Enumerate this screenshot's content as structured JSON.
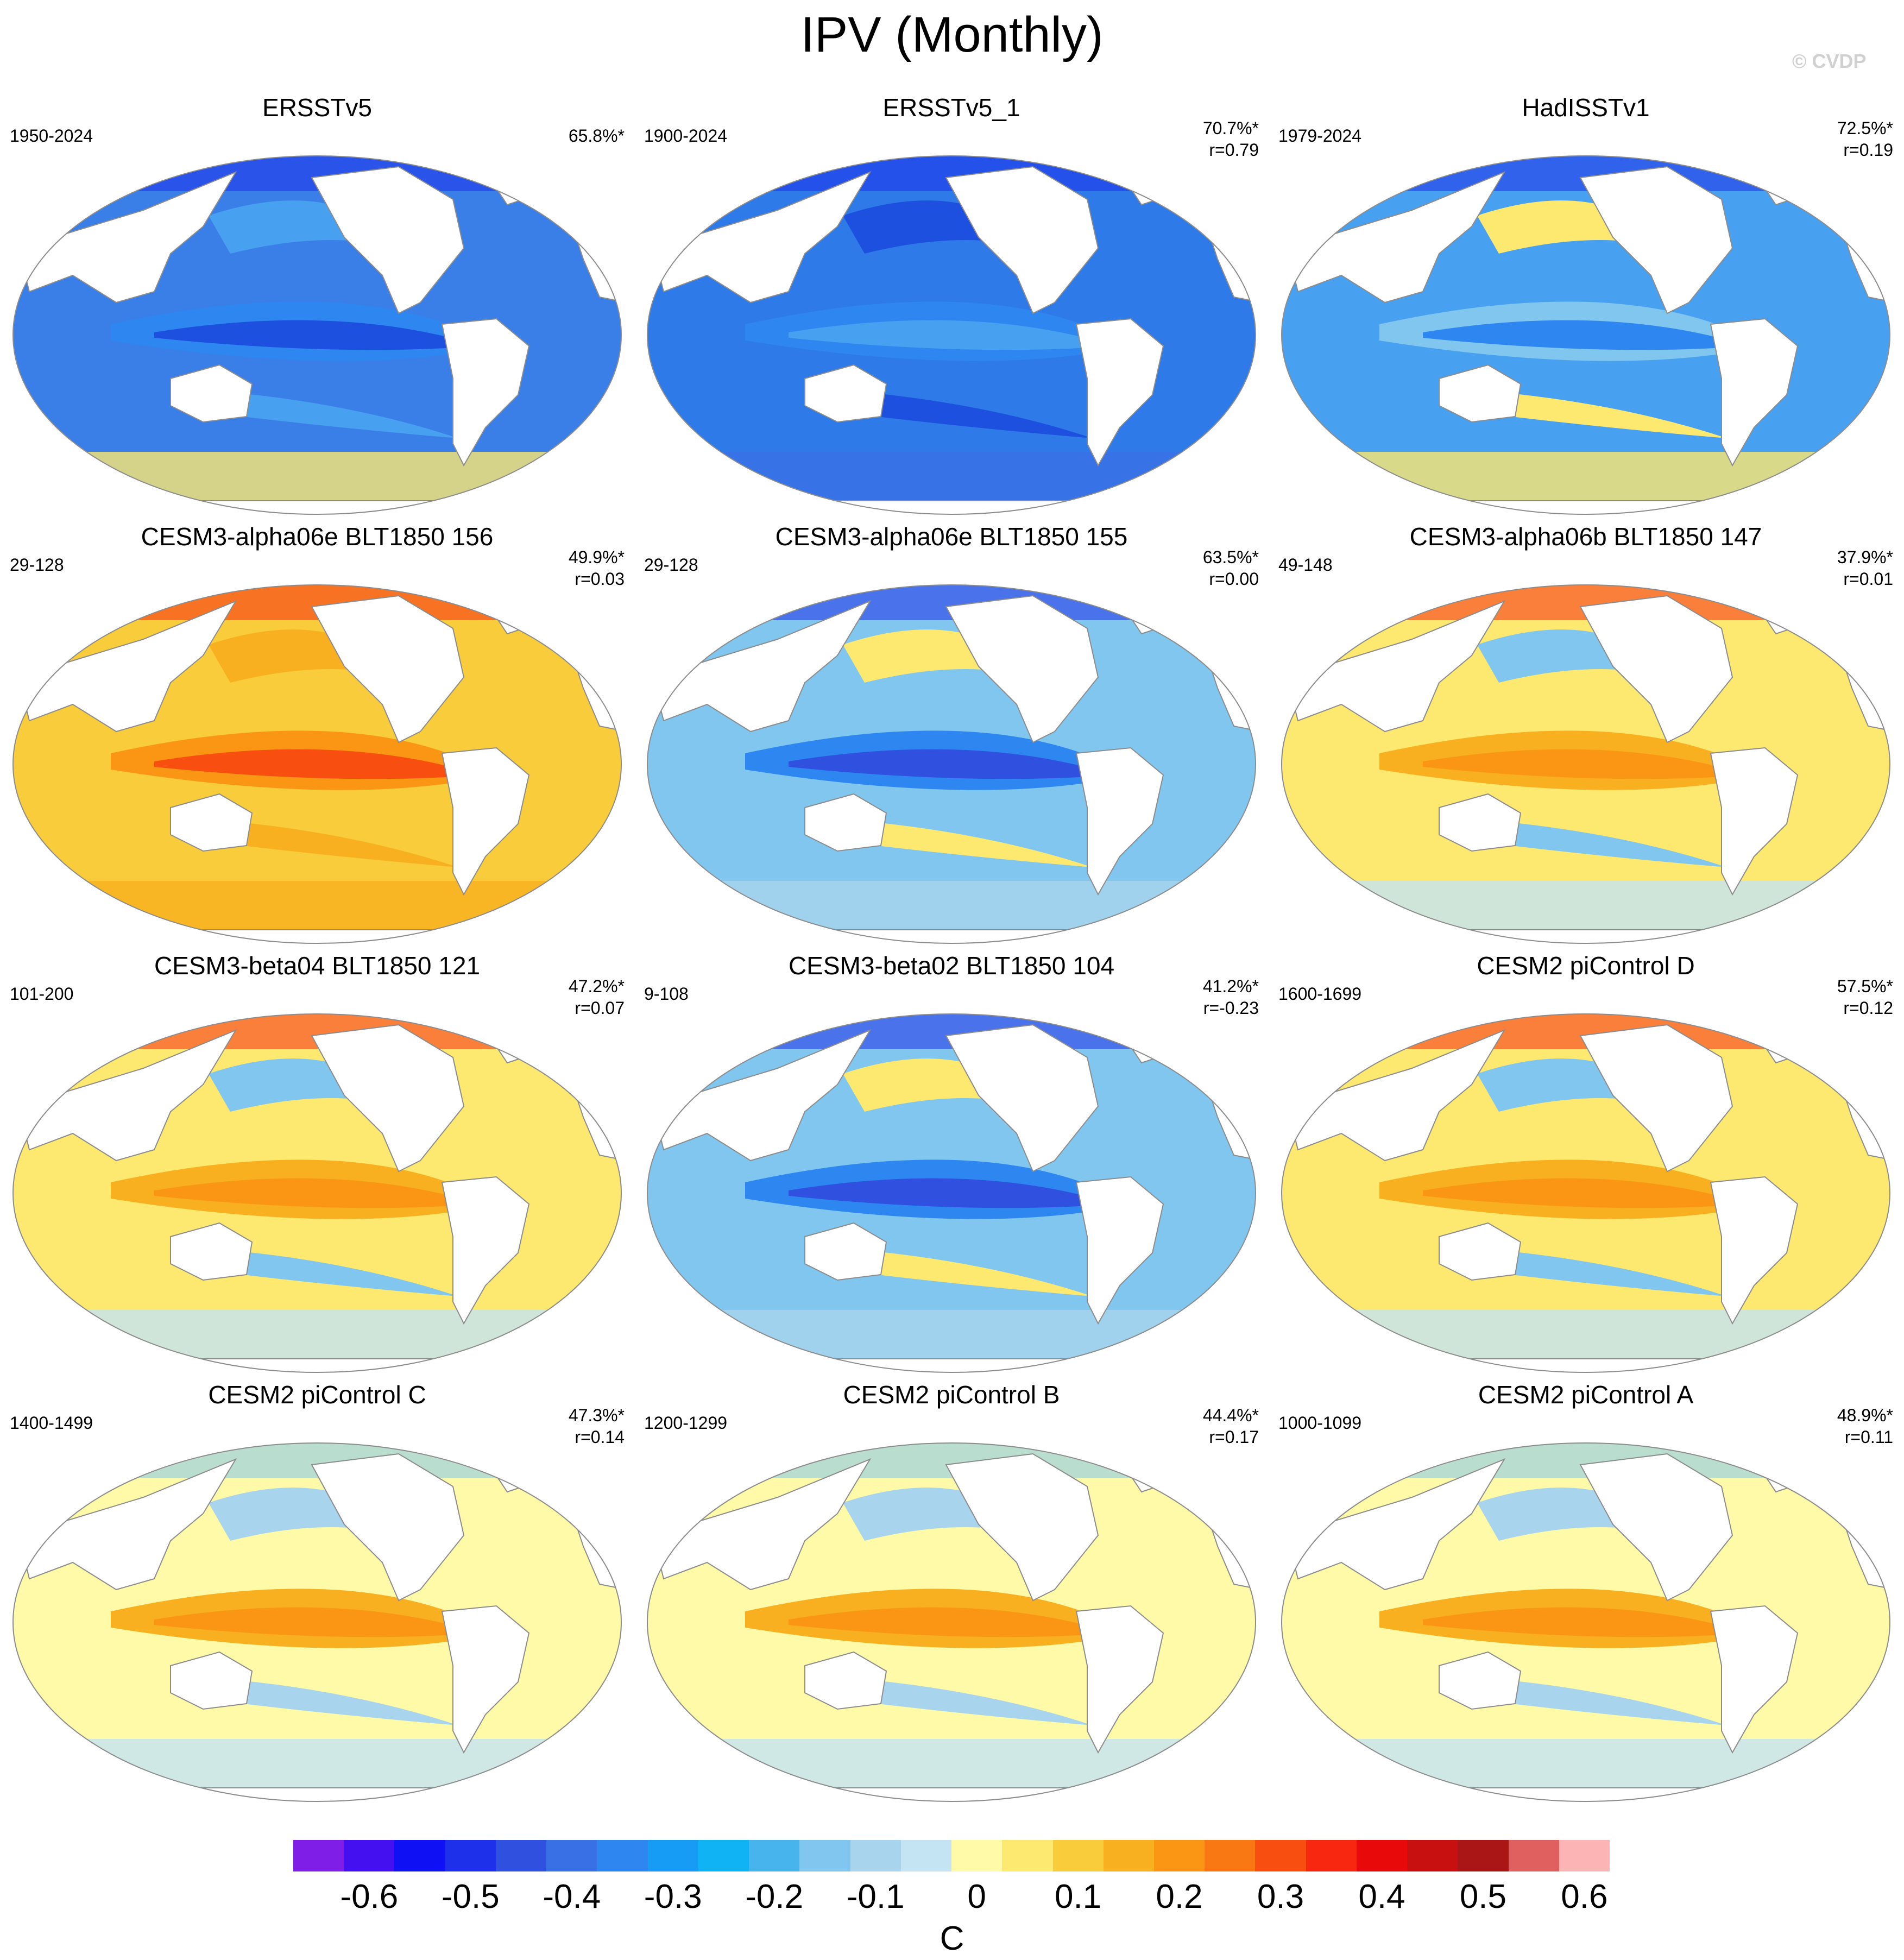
{
  "title": "IPV (Monthly)",
  "watermark": "© CVDP",
  "panels": [
    {
      "name": "ERSSTv5",
      "period": "1950-2024",
      "pct": "65.8%*",
      "r": "",
      "pattern": "obs_neg"
    },
    {
      "name": "ERSSTv5_1",
      "period": "1900-2024",
      "pct": "70.7%*",
      "r": "r=0.79",
      "pattern": "obs_neg_deep"
    },
    {
      "name": "HadISSTv1",
      "period": "1979-2024",
      "pct": "72.5%*",
      "r": "r=0.19",
      "pattern": "obs_mixed"
    },
    {
      "name": "CESM3-alpha06e BLT1850 156",
      "period": "29-128",
      "pct": "49.9%*",
      "r": "r=0.03",
      "pattern": "warm_strong"
    },
    {
      "name": "CESM3-alpha06e BLT1850 155",
      "period": "29-128",
      "pct": "63.5%*",
      "r": "r=0.00",
      "pattern": "cool"
    },
    {
      "name": "CESM3-alpha06b BLT1850 147",
      "period": "49-148",
      "pct": "37.9%*",
      "r": "r=0.01",
      "pattern": "warm"
    },
    {
      "name": "CESM3-beta04 BLT1850 121",
      "period": "101-200",
      "pct": "47.2%*",
      "r": "r=0.07",
      "pattern": "warm"
    },
    {
      "name": "CESM3-beta02 BLT1850 104",
      "period": "9-108",
      "pct": "41.2%*",
      "r": "r=-0.23",
      "pattern": "cool"
    },
    {
      "name": "CESM2 piControl D",
      "period": "1600-1699",
      "pct": "57.5%*",
      "r": "r=0.12",
      "pattern": "warm"
    },
    {
      "name": "CESM2 piControl C",
      "period": "1400-1499",
      "pct": "47.3%*",
      "r": "r=0.14",
      "pattern": "warm_mild"
    },
    {
      "name": "CESM2 piControl B",
      "period": "1200-1299",
      "pct": "44.4%*",
      "r": "r=0.17",
      "pattern": "warm_mild"
    },
    {
      "name": "CESM2 piControl A",
      "period": "1000-1099",
      "pct": "48.9%*",
      "r": "r=0.11",
      "pattern": "warm_mild"
    }
  ],
  "colorbar": {
    "unit": "C",
    "colors": [
      "#7f1ee6",
      "#4410f0",
      "#1010f5",
      "#1e30ea",
      "#3050e0",
      "#3a70e6",
      "#2e86f0",
      "#169cf5",
      "#10b4f5",
      "#48b4ee",
      "#80c6ee",
      "#a8d4ee",
      "#c4e4f4",
      "#fffaa8",
      "#fde870",
      "#f8cc3a",
      "#f8b020",
      "#fa9614",
      "#fa7814",
      "#f84e10",
      "#f82810",
      "#e80a0a",
      "#c81010",
      "#aa1616",
      "#e06060",
      "#fcb4b4"
    ],
    "ticks": [
      "-0.6",
      "-0.5",
      "-0.4",
      "-0.3",
      "-0.2",
      "-0.1",
      "0",
      "0.1",
      "0.2",
      "0.3",
      "0.4",
      "0.5",
      "0.6"
    ]
  }
}
